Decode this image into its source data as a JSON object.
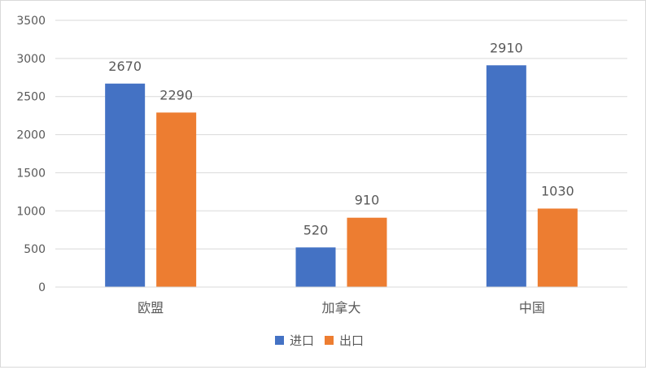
{
  "chart_data": {
    "type": "bar",
    "categories": [
      "欧盟",
      "加拿大",
      "中国"
    ],
    "series": [
      {
        "name": "进口",
        "values": [
          2670,
          520,
          2910
        ],
        "color": "#4472C4"
      },
      {
        "name": "出口",
        "values": [
          2290,
          910,
          1030
        ],
        "color": "#ED7D31"
      }
    ],
    "ylim": [
      0,
      3500
    ],
    "yticks": [
      0,
      500,
      1000,
      1500,
      2000,
      2500,
      3000,
      3500
    ],
    "grid": true,
    "legend_position": "bottom",
    "data_labels": true
  }
}
